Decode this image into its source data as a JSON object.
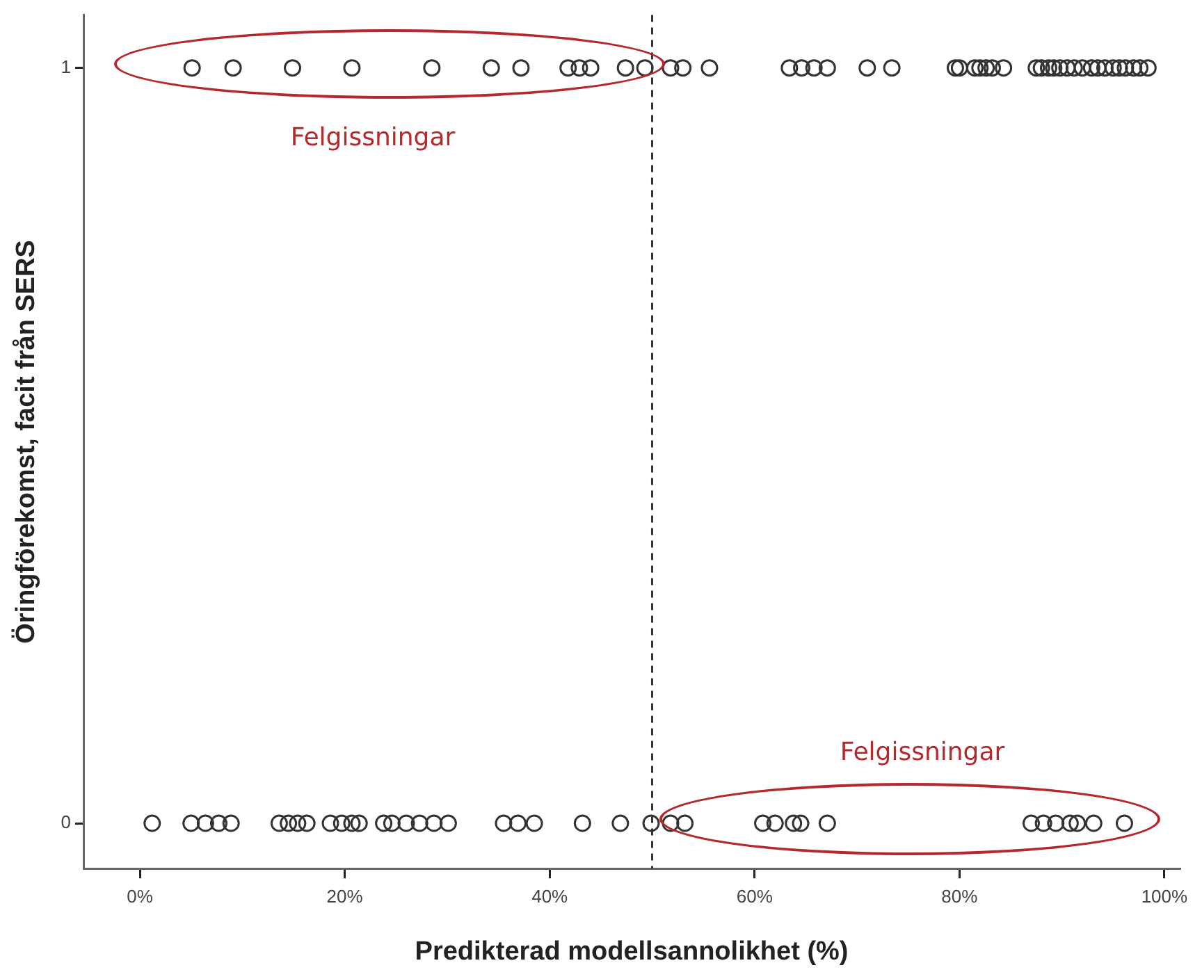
{
  "chart_data": {
    "type": "scatter",
    "xlabel": "Predikterad modellsannolikhet (%)",
    "ylabel": "Öringförekomst, facit från SERS",
    "xlim": [
      -5.5,
      101.5
    ],
    "ylim": [
      -0.06,
      1.07
    ],
    "xticks": [
      {
        "value": 0,
        "label": "0%"
      },
      {
        "value": 20,
        "label": "20%"
      },
      {
        "value": 40,
        "label": "40%"
      },
      {
        "value": 60,
        "label": "60%"
      },
      {
        "value": 80,
        "label": "80%"
      },
      {
        "value": 100,
        "label": "100%"
      }
    ],
    "yticks": [
      0,
      1
    ],
    "grid": false,
    "legend": false,
    "marker": "circle",
    "series": [
      {
        "color": "#333333",
        "x": [
          5.1,
          9.1,
          14.9,
          20.7,
          28.5,
          34.3,
          37.2,
          41.8,
          42.9,
          44.0,
          47.4,
          49.3,
          51.8,
          53.0,
          55.6,
          63.4,
          64.6,
          65.8,
          67.1,
          71.0,
          73.4,
          79.6,
          80.0,
          81.5,
          82.0,
          82.6,
          83.2,
          84.3,
          87.5,
          88.0,
          88.7,
          89.2,
          89.8,
          90.5,
          91.2,
          92.0,
          92.9,
          93.5,
          94.2,
          95.0,
          95.6,
          96.2,
          97.0,
          97.6,
          98.4
        ],
        "values": [
          1,
          1,
          1,
          1,
          1,
          1,
          1,
          1,
          1,
          1,
          1,
          1,
          1,
          1,
          1,
          1,
          1,
          1,
          1,
          1,
          1,
          1,
          1,
          1,
          1,
          1,
          1,
          1,
          1,
          1,
          1,
          1,
          1,
          1,
          1,
          1,
          1,
          1,
          1,
          1,
          1,
          1,
          1,
          1,
          1
        ]
      },
      {
        "color": "#333333",
        "x": [
          1.2,
          5.0,
          6.4,
          7.7,
          8.9,
          13.6,
          14.5,
          15.4,
          16.3,
          18.6,
          19.7,
          20.7,
          21.4,
          23.8,
          24.6,
          26.0,
          27.3,
          28.7,
          30.1,
          35.5,
          36.9,
          38.5,
          43.2,
          46.9,
          49.9,
          51.8,
          53.2,
          60.8,
          62.0,
          63.8,
          64.5,
          67.1,
          87.0,
          88.2,
          89.4,
          90.8,
          91.5,
          93.1,
          96.1
        ],
        "values": [
          0,
          0,
          0,
          0,
          0,
          0,
          0,
          0,
          0,
          0,
          0,
          0,
          0,
          0,
          0,
          0,
          0,
          0,
          0,
          0,
          0,
          0,
          0,
          0,
          0,
          0,
          0,
          0,
          0,
          0,
          0,
          0,
          0,
          0,
          0,
          0,
          0,
          0,
          0
        ]
      }
    ],
    "ref_lines": [
      {
        "axis": "x",
        "value": 50,
        "line_style": "dashed",
        "color": "#333333"
      }
    ],
    "annotations": [
      "Felgissningar",
      "Felgissningar"
    ]
  }
}
